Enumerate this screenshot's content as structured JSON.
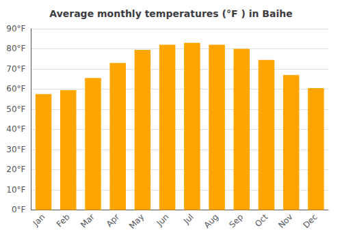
{
  "chart_data": {
    "type": "bar",
    "title": "Average monthly temperatures (°F ) in Baihe",
    "categories": [
      "Jan",
      "Feb",
      "Mar",
      "Apr",
      "May",
      "Jun",
      "Jul",
      "Aug",
      "Sep",
      "Oct",
      "Nov",
      "Dec"
    ],
    "values": [
      57.5,
      59.5,
      65.5,
      73,
      79.5,
      82,
      83,
      82,
      80,
      74.5,
      67,
      60.5
    ],
    "color": "#FFA500",
    "ylim": [
      0,
      90
    ],
    "yticks": [
      {
        "value": 0,
        "label": "0°F"
      },
      {
        "value": 10,
        "label": "10°F"
      },
      {
        "value": 20,
        "label": "20°F"
      },
      {
        "value": 30,
        "label": "30°F"
      },
      {
        "value": 40,
        "label": "40°F"
      },
      {
        "value": 50,
        "label": "50°F"
      },
      {
        "value": 60,
        "label": "60°F"
      },
      {
        "value": 70,
        "label": "70°F"
      },
      {
        "value": 80,
        "label": "80°F"
      },
      {
        "value": 90,
        "label": "90°F"
      }
    ],
    "grid": true
  }
}
